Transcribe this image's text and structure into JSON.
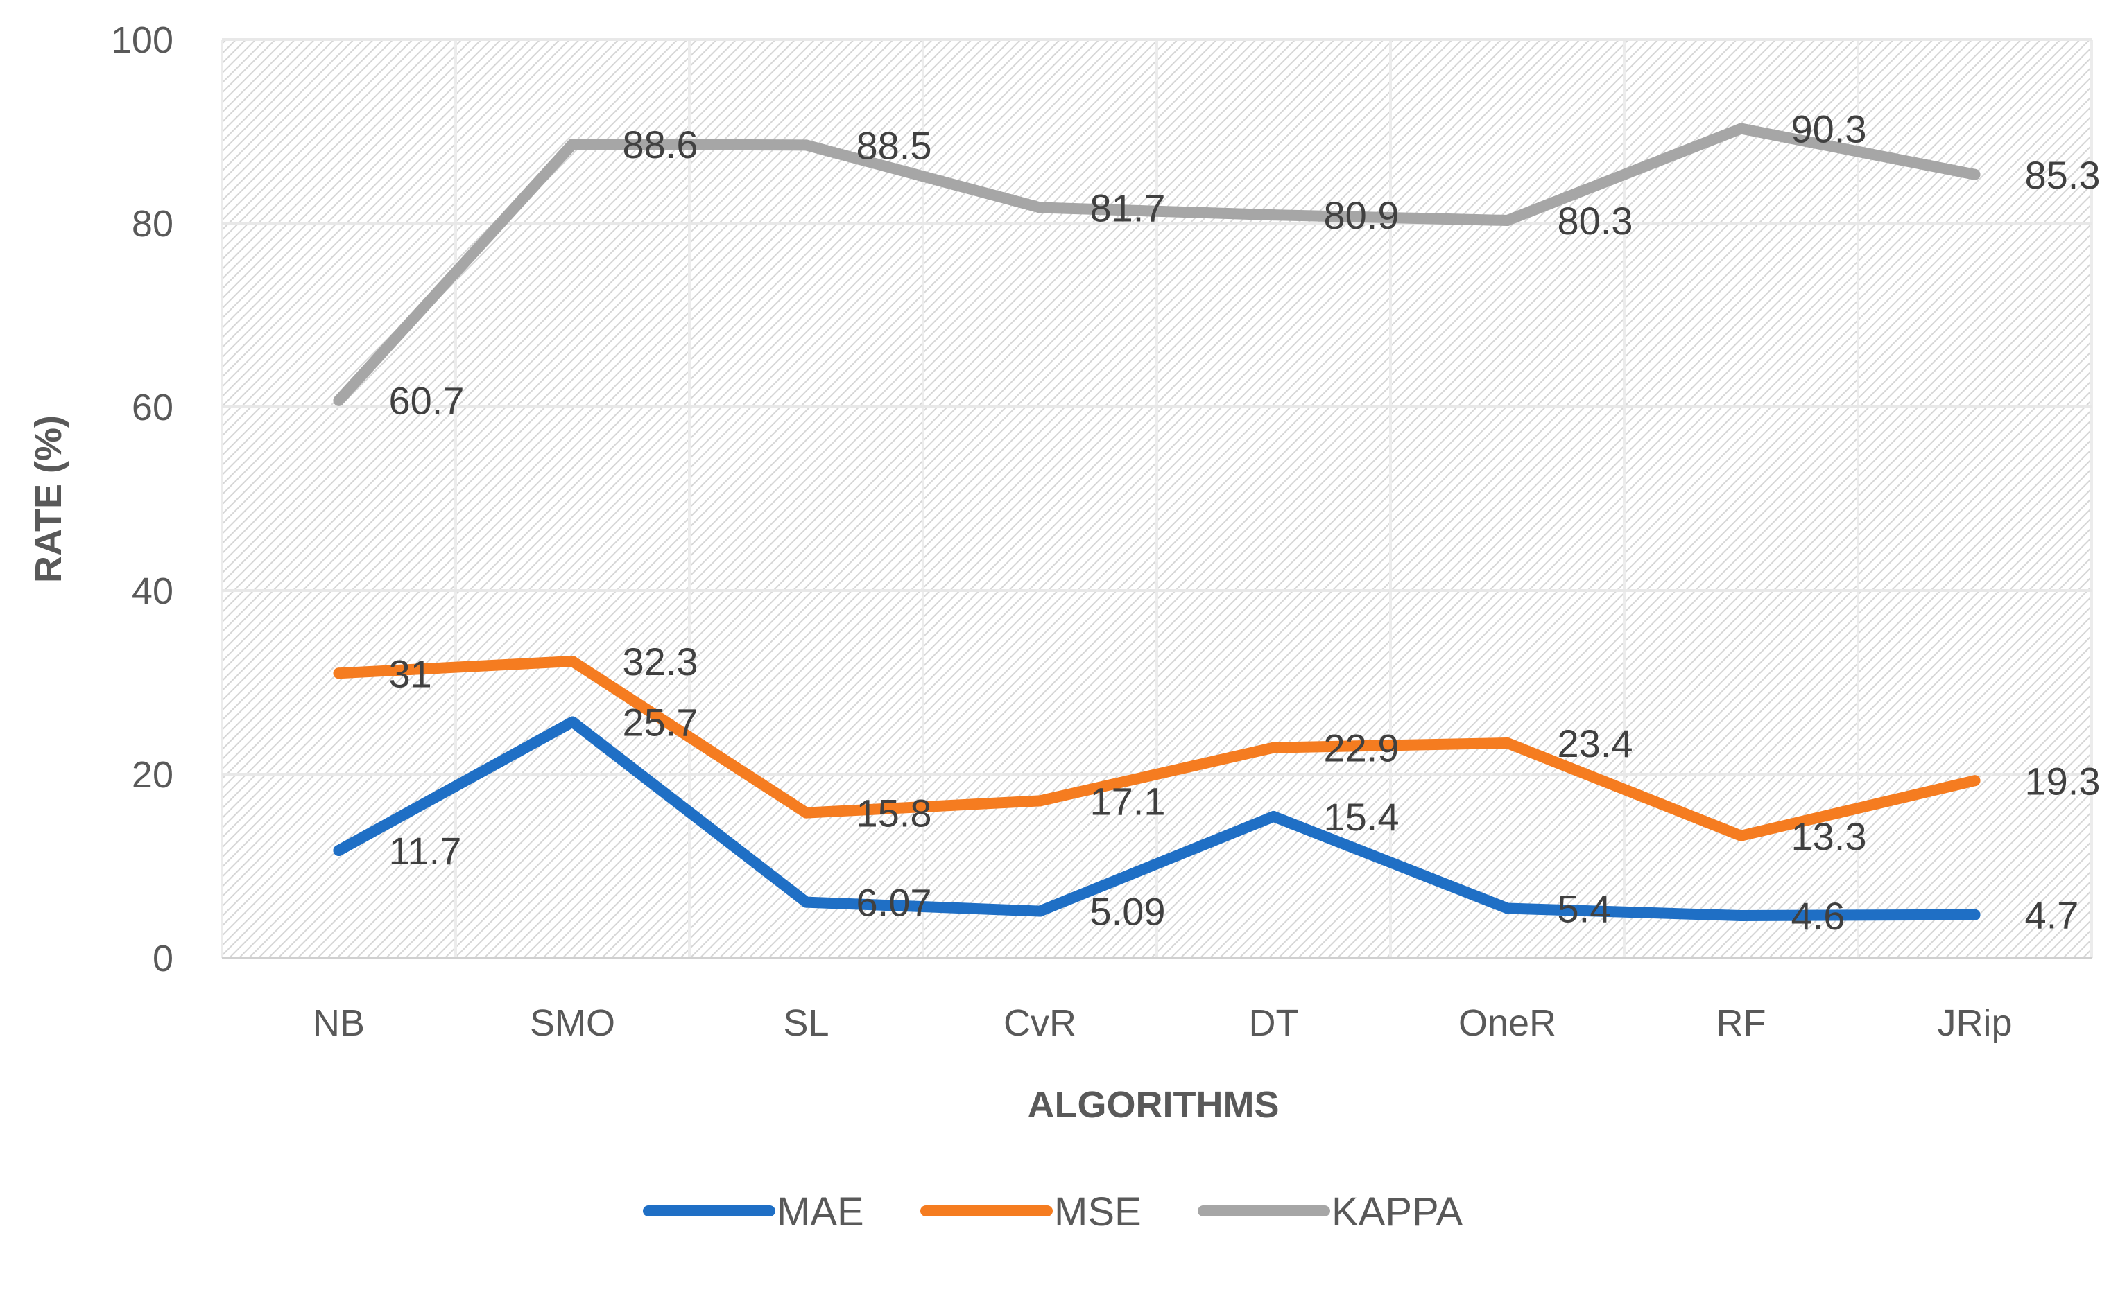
{
  "chart_data": {
    "type": "line",
    "title": "",
    "xlabel": "ALGORITHMS",
    "ylabel": "RATE (%)",
    "ylim": [
      0,
      100
    ],
    "yticks": [
      "0",
      "20",
      "40",
      "60",
      "80",
      "100"
    ],
    "categories": [
      "NB",
      "SMO",
      "SL",
      "CvR",
      "DT",
      "OneR",
      "RF",
      "JRip"
    ],
    "series": [
      {
        "name": "MAE",
        "color": "#1f6fc5",
        "values": [
          11.7,
          25.7,
          6.07,
          5.09,
          15.4,
          5.4,
          4.6,
          4.7
        ],
        "labels": [
          "11.7",
          "25.7",
          "6.07",
          "5.09",
          "15.4",
          "5.4",
          "4.6",
          "4.7"
        ]
      },
      {
        "name": "MSE",
        "color": "#f57c20",
        "values": [
          31,
          32.3,
          15.8,
          17.1,
          22.9,
          23.4,
          13.3,
          19.3
        ],
        "labels": [
          "31",
          "32.3",
          "15.8",
          "17.1",
          "22.9",
          "23.4",
          "13.3",
          "19.3"
        ]
      },
      {
        "name": "KAPPA",
        "color": "#a6a6a6",
        "values": [
          60.7,
          88.6,
          88.5,
          81.7,
          80.9,
          80.3,
          90.3,
          85.3
        ],
        "labels": [
          "60.7",
          "88.6",
          "88.5",
          "81.7",
          "80.9",
          "80.3",
          "90.3",
          "85.3"
        ]
      }
    ],
    "legend_position": "bottom",
    "grid": true
  }
}
